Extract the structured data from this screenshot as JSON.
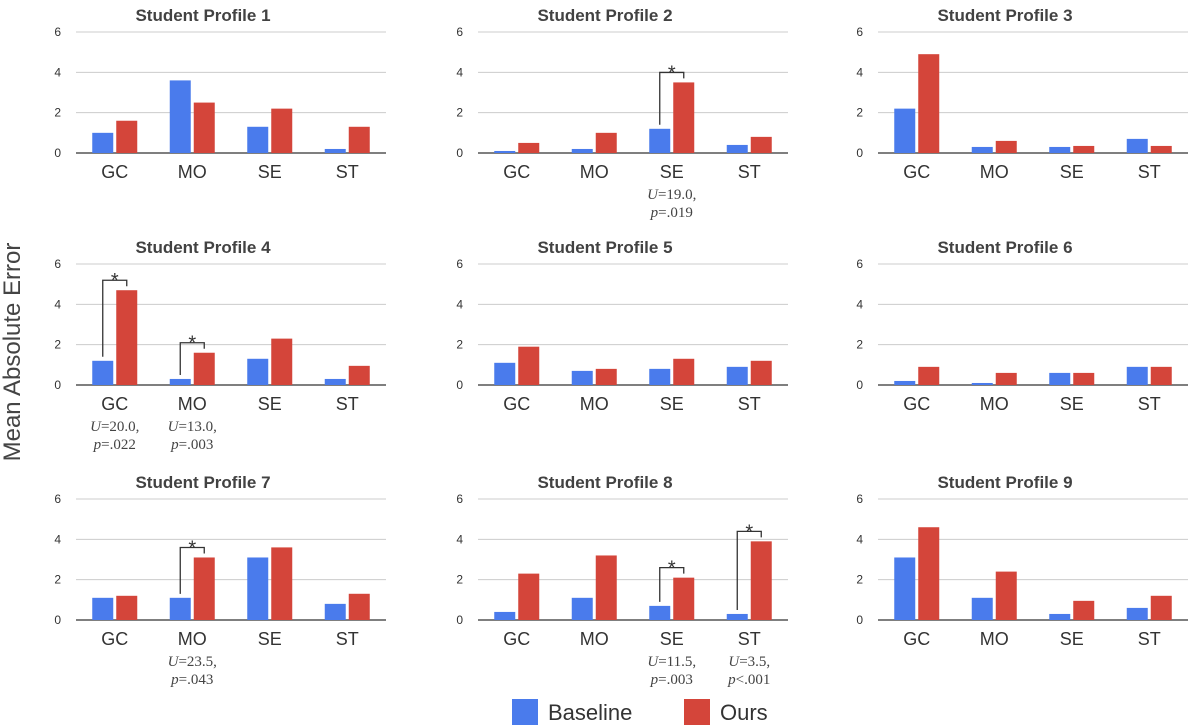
{
  "y_axis_label": "Mean Absolute Error",
  "legend": {
    "baseline_label": "Baseline",
    "ours_label": "Ours"
  },
  "colors": {
    "baseline": "#4a7bec",
    "ours": "#d4453a",
    "grid": "#cccccc",
    "text": "#333333"
  },
  "chart_data": [
    {
      "type": "bar",
      "title": "Student Profile 1",
      "categories": [
        "GC",
        "MO",
        "SE",
        "ST"
      ],
      "yticks": [
        "0",
        "2",
        "4",
        "6"
      ],
      "ylim": [
        0,
        6
      ],
      "series": [
        {
          "name": "Baseline",
          "values": [
            1.0,
            3.6,
            1.3,
            0.2
          ]
        },
        {
          "name": "Ours",
          "values": [
            1.6,
            2.5,
            2.2,
            1.3
          ]
        }
      ],
      "significance": []
    },
    {
      "type": "bar",
      "title": "Student Profile 2",
      "categories": [
        "GC",
        "MO",
        "SE",
        "ST"
      ],
      "yticks": [
        "0",
        "2",
        "4",
        "6"
      ],
      "ylim": [
        0,
        6
      ],
      "series": [
        {
          "name": "Baseline",
          "values": [
            0.1,
            0.2,
            1.2,
            0.4
          ]
        },
        {
          "name": "Ours",
          "values": [
            0.5,
            1.0,
            3.5,
            0.8
          ]
        }
      ],
      "significance": [
        {
          "category_index": 2,
          "marker": "*",
          "u_text": "=19.0,",
          "p_text": "=.019"
        }
      ]
    },
    {
      "type": "bar",
      "title": "Student Profile 3",
      "categories": [
        "GC",
        "MO",
        "SE",
        "ST"
      ],
      "yticks": [
        "0",
        "2",
        "4",
        "6"
      ],
      "ylim": [
        0,
        6
      ],
      "series": [
        {
          "name": "Baseline",
          "values": [
            2.2,
            0.3,
            0.3,
            0.7
          ]
        },
        {
          "name": "Ours",
          "values": [
            4.9,
            0.6,
            0.35,
            0.35
          ]
        }
      ],
      "significance": []
    },
    {
      "type": "bar",
      "title": "Student Profile 4",
      "categories": [
        "GC",
        "MO",
        "SE",
        "ST"
      ],
      "yticks": [
        "0",
        "2",
        "4",
        "6"
      ],
      "ylim": [
        0,
        6
      ],
      "series": [
        {
          "name": "Baseline",
          "values": [
            1.2,
            0.3,
            1.3,
            0.3
          ]
        },
        {
          "name": "Ours",
          "values": [
            4.7,
            1.6,
            2.3,
            0.95
          ]
        }
      ],
      "significance": [
        {
          "category_index": 0,
          "marker": "*",
          "u_text": "=20.0,",
          "p_text": "=.022"
        },
        {
          "category_index": 1,
          "marker": "*",
          "u_text": "=13.0,",
          "p_text": "=.003"
        }
      ]
    },
    {
      "type": "bar",
      "title": "Student Profile 5",
      "categories": [
        "GC",
        "MO",
        "SE",
        "ST"
      ],
      "yticks": [
        "0",
        "2",
        "4",
        "6"
      ],
      "ylim": [
        0,
        6
      ],
      "series": [
        {
          "name": "Baseline",
          "values": [
            1.1,
            0.7,
            0.8,
            0.9
          ]
        },
        {
          "name": "Ours",
          "values": [
            1.9,
            0.8,
            1.3,
            1.2
          ]
        }
      ],
      "significance": []
    },
    {
      "type": "bar",
      "title": "Student Profile 6",
      "categories": [
        "GC",
        "MO",
        "SE",
        "ST"
      ],
      "yticks": [
        "0",
        "2",
        "4",
        "6"
      ],
      "ylim": [
        0,
        6
      ],
      "series": [
        {
          "name": "Baseline",
          "values": [
            0.2,
            0.1,
            0.6,
            0.9
          ]
        },
        {
          "name": "Ours",
          "values": [
            0.9,
            0.6,
            0.6,
            0.9
          ]
        }
      ],
      "significance": []
    },
    {
      "type": "bar",
      "title": "Student Profile 7",
      "categories": [
        "GC",
        "MO",
        "SE",
        "ST"
      ],
      "yticks": [
        "0",
        "2",
        "4",
        "6"
      ],
      "ylim": [
        0,
        6
      ],
      "series": [
        {
          "name": "Baseline",
          "values": [
            1.1,
            1.1,
            3.1,
            0.8
          ]
        },
        {
          "name": "Ours",
          "values": [
            1.2,
            3.1,
            3.6,
            1.3
          ]
        }
      ],
      "significance": [
        {
          "category_index": 1,
          "marker": "*",
          "u_text": "=23.5,",
          "p_text": "=.043"
        }
      ]
    },
    {
      "type": "bar",
      "title": "Student Profile 8",
      "categories": [
        "GC",
        "MO",
        "SE",
        "ST"
      ],
      "yticks": [
        "0",
        "2",
        "4",
        "6"
      ],
      "ylim": [
        0,
        6
      ],
      "series": [
        {
          "name": "Baseline",
          "values": [
            0.4,
            1.1,
            0.7,
            0.3
          ]
        },
        {
          "name": "Ours",
          "values": [
            2.3,
            3.2,
            2.1,
            3.9
          ]
        }
      ],
      "significance": [
        {
          "category_index": 2,
          "marker": "*",
          "u_text": "=11.5,",
          "p_text": "=.003"
        },
        {
          "category_index": 3,
          "marker": "*",
          "u_text": "=3.5,",
          "p_text": "<.001"
        }
      ]
    },
    {
      "type": "bar",
      "title": "Student Profile 9",
      "categories": [
        "GC",
        "MO",
        "SE",
        "ST"
      ],
      "yticks": [
        "0",
        "2",
        "4",
        "6"
      ],
      "ylim": [
        0,
        6
      ],
      "series": [
        {
          "name": "Baseline",
          "values": [
            3.1,
            1.1,
            0.3,
            0.6
          ]
        },
        {
          "name": "Ours",
          "values": [
            4.6,
            2.4,
            0.95,
            1.2
          ]
        }
      ],
      "significance": []
    }
  ]
}
